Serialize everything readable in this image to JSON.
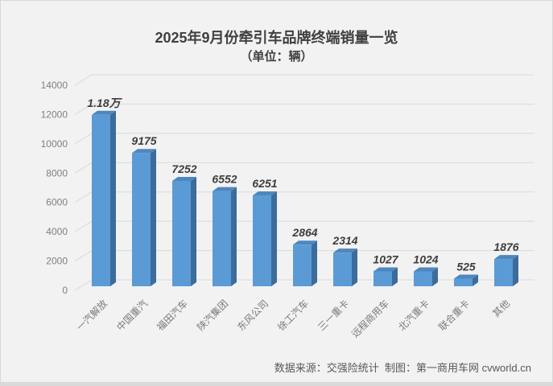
{
  "header": {
    "title": "2025年9月份牵引车品牌终端销量一览",
    "subtitle": "（单位：辆）"
  },
  "footer": {
    "credit": "数据来源：交强险统计  制图：第一商用车网 cvworld.cn"
  },
  "chart_data": {
    "type": "bar",
    "style": "3d-column",
    "title": "2025年9月份牵引车品牌终端销量一览",
    "subtitle": "（单位：辆）",
    "categories": [
      "一汽解放",
      "中国重汽",
      "福田汽车",
      "陕汽集团",
      "东风公司",
      "徐工汽车",
      "三一重卡",
      "远程商用车",
      "北汽重卡",
      "联合重卡",
      "其他"
    ],
    "values": [
      11800,
      9175,
      7252,
      6552,
      6251,
      2864,
      2314,
      1027,
      1024,
      525,
      1876
    ],
    "value_labels": [
      "1.18万",
      "9175",
      "7252",
      "6552",
      "6251",
      "2864",
      "2314",
      "1027",
      "1024",
      "525",
      "1876"
    ],
    "xlabel": "",
    "ylabel": "",
    "ylim": [
      0,
      14000
    ],
    "yticks": [
      0,
      2000,
      4000,
      6000,
      8000,
      10000,
      12000,
      14000
    ],
    "grid": true,
    "legend": "none",
    "colors": {
      "bar_front": "#5B9BD5",
      "bar_top": "#4E87BE",
      "bar_side": "#3B6C9B",
      "gridline": "#D9D9D9",
      "value_label": "#3D3D3D",
      "axis_label": "#7F7F7F",
      "background": "#F2F2F3"
    }
  }
}
